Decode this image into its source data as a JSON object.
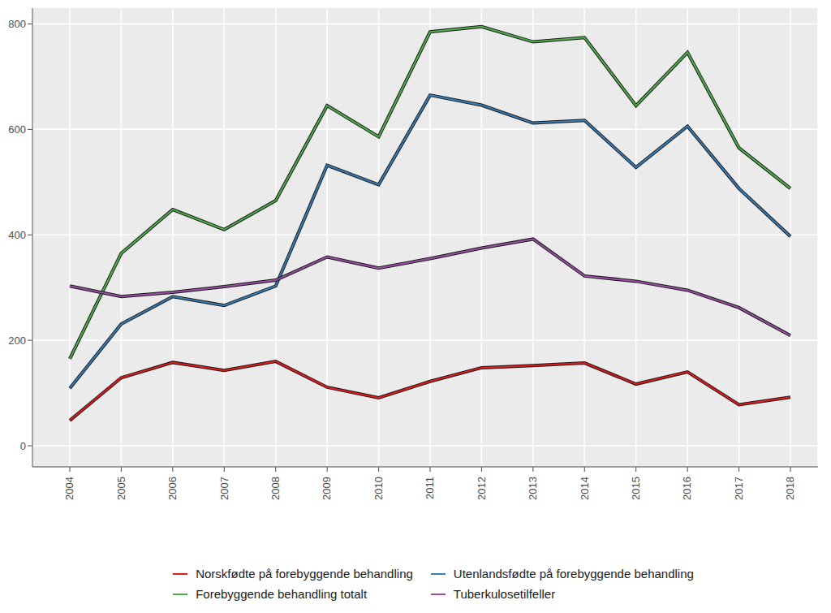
{
  "chart_data": {
    "type": "line",
    "categories": [
      "2004",
      "2005",
      "2006",
      "2007",
      "2008",
      "2009",
      "2010",
      "2011",
      "2012",
      "2013",
      "2014",
      "2015",
      "2016",
      "2017",
      "2018"
    ],
    "series": [
      {
        "name": "Norskfødte på forebyggende behandling",
        "color": "#e41a1c",
        "values": [
          48,
          129,
          158,
          143,
          160,
          111,
          91,
          122,
          148,
          152,
          157,
          117,
          140,
          78,
          92
        ]
      },
      {
        "name": "Utenlandsfødte på forebyggende behandling",
        "color": "#377eb8",
        "values": [
          109,
          231,
          283,
          266,
          303,
          532,
          495,
          665,
          646,
          612,
          617,
          528,
          606,
          488,
          397
        ]
      },
      {
        "name": "Forebyggende behandling totalt",
        "color": "#4daf4a",
        "values": [
          165,
          365,
          448,
          410,
          465,
          645,
          586,
          785,
          795,
          766,
          774,
          645,
          746,
          565,
          488
        ]
      },
      {
        "name": "Tuberkulosetilfeller",
        "color": "#984ea3",
        "values": [
          303,
          283,
          291,
          302,
          314,
          358,
          337,
          355,
          375,
          392,
          322,
          312,
          295,
          262,
          209
        ]
      }
    ],
    "ylim": [
      -40,
      830
    ],
    "yticks": [
      0,
      200,
      400,
      600,
      800
    ],
    "grid": true,
    "legend": "bottom"
  }
}
